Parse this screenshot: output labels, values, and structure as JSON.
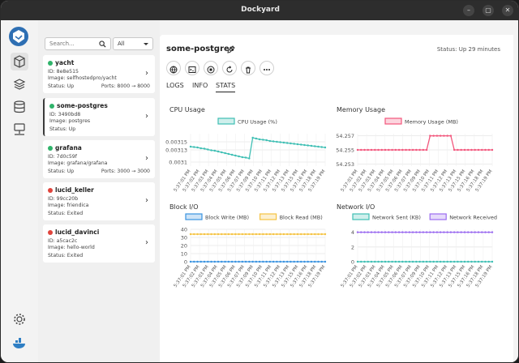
{
  "app": {
    "title": "Dockyard"
  },
  "titlebar": {
    "menu_icon": "ellipsis-icon",
    "minimize": "–",
    "maximize": "▢",
    "close": "✕"
  },
  "rail": {
    "items": [
      "containers-icon",
      "images-icon",
      "volumes-icon",
      "networks-icon"
    ],
    "settings": "gear-icon",
    "docker": "docker-whale-icon"
  },
  "search": {
    "placeholder": "Search..."
  },
  "filter": {
    "selected": "All"
  },
  "containers": [
    {
      "name": "yacht",
      "id": "ID: 8e8e515",
      "image": "Image: selfhostedpro/yacht",
      "status": "Status: Up",
      "ports": "Ports: 8000 → 8000",
      "state": "running"
    },
    {
      "name": "some-postgres",
      "id": "ID: 3490bd8",
      "image": "Image: postgres",
      "status": "Status: Up",
      "ports": "",
      "state": "running"
    },
    {
      "name": "grafana",
      "id": "ID: 7d0c59f",
      "image": "Image: grafana/grafana",
      "status": "Status: Up",
      "ports": "Ports: 3000 → 3000",
      "state": "running"
    },
    {
      "name": "lucid_keller",
      "id": "ID: 99cc20b",
      "image": "Image: friendica",
      "status": "Status: Exited",
      "ports": "",
      "state": "exited"
    },
    {
      "name": "lucid_davinci",
      "id": "ID: a5cac2c",
      "image": "Image: hello-world",
      "status": "Status: Exited",
      "ports": "",
      "state": "exited"
    }
  ],
  "detail": {
    "name": "some-postgres",
    "status": "Status: Up 29 minutes",
    "actions": [
      "globe-icon",
      "terminal-icon",
      "stop-icon",
      "restart-icon",
      "trash-icon",
      "more-icon"
    ],
    "tabs": [
      "LOGS",
      "INFO",
      "STATS"
    ],
    "active_tab": "STATS"
  },
  "colors": {
    "running": "#2fb36a",
    "exited": "#e0443c",
    "teal": "#3fbfb4",
    "pink": "#f2567c",
    "blue": "#3a93e0",
    "yellow": "#f5c342",
    "purple": "#9b6cf0"
  },
  "time_labels": [
    "5:37:01 PM",
    "5:37:02 PM",
    "5:37:03 PM",
    "5:37:04 PM",
    "5:37:05 PM",
    "5:37:06 PM",
    "5:37:07 PM",
    "5:37:09 PM",
    "5:37:10 PM",
    "5:37:11 PM",
    "5:37:12 PM",
    "5:37:13 PM",
    "5:37:15 PM",
    "5:37:16 PM",
    "5:37:18 PM",
    "5:37:19 PM"
  ],
  "chart_data": [
    {
      "type": "line",
      "title": "CPU Usage",
      "series": [
        {
          "name": "CPU Usage (%)",
          "color": "#3fbfb4",
          "x": [
            0,
            1,
            2,
            3,
            4,
            5,
            6,
            7,
            8,
            9,
            10,
            11,
            12,
            13,
            14,
            15,
            16,
            17,
            18,
            19,
            20,
            21,
            22,
            23,
            24,
            25,
            26,
            27,
            28,
            29,
            30,
            31,
            32,
            33,
            34,
            35,
            36,
            37,
            38,
            39
          ],
          "values": [
            0.003138,
            0.003137,
            0.003136,
            0.003134,
            0.003133,
            0.003131,
            0.003129,
            0.003128,
            0.003126,
            0.003124,
            0.003122,
            0.00312,
            0.003118,
            0.003116,
            0.003114,
            0.003112,
            0.003111,
            0.003109,
            0.00316,
            0.003158,
            0.003156,
            0.003155,
            0.003154,
            0.003152,
            0.003151,
            0.00315,
            0.003149,
            0.003148,
            0.003147,
            0.003146,
            0.003145,
            0.003144,
            0.003143,
            0.003142,
            0.003141,
            0.00314,
            0.003139,
            0.003138,
            0.003137,
            0.003136
          ]
        }
      ],
      "yticks": [
        "0.00315",
        "0.00313",
        "0.0031"
      ],
      "ylim": [
        0.00309,
        0.00317
      ]
    },
    {
      "type": "line",
      "title": "Memory Usage",
      "series": [
        {
          "name": "Memory Usage (MB)",
          "color": "#f2567c",
          "values": [
            54.255,
            54.255,
            54.255,
            54.255,
            54.255,
            54.255,
            54.255,
            54.255,
            54.255,
            54.255,
            54.255,
            54.255,
            54.255,
            54.255,
            54.255,
            54.255,
            54.255,
            54.255,
            54.255,
            54.255,
            54.255,
            54.257,
            54.257,
            54.257,
            54.257,
            54.257,
            54.257,
            54.257,
            54.255,
            54.255,
            54.255,
            54.255,
            54.255,
            54.255,
            54.255,
            54.255,
            54.255,
            54.255,
            54.255,
            54.255
          ]
        }
      ],
      "yticks": [
        "54.257",
        "54.255",
        "54.253"
      ],
      "ylim": [
        54.2527,
        54.2573
      ]
    },
    {
      "type": "line",
      "title": "Block I/O",
      "series": [
        {
          "name": "Block Write (MB)",
          "color": "#3a93e0",
          "values": [
            0,
            0,
            0,
            0,
            0,
            0,
            0,
            0,
            0,
            0,
            0,
            0,
            0,
            0,
            0,
            0,
            0,
            0,
            0,
            0,
            0,
            0,
            0,
            0,
            0,
            0,
            0,
            0,
            0,
            0,
            0,
            0,
            0,
            0,
            0,
            0,
            0,
            0,
            0,
            0
          ]
        },
        {
          "name": "Block Read (MB)",
          "color": "#f5c342",
          "values": [
            34,
            34,
            34,
            34,
            34,
            34,
            34,
            34,
            34,
            34,
            34,
            34,
            34,
            34,
            34,
            34,
            34,
            34,
            34,
            34,
            34,
            34,
            34,
            34,
            34,
            34,
            34,
            34,
            34,
            34,
            34,
            34,
            34,
            34,
            34,
            34,
            34,
            34,
            34,
            34
          ]
        }
      ],
      "yticks": [
        "40",
        "30",
        "20",
        "10",
        "0"
      ],
      "ylim": [
        0,
        40
      ]
    },
    {
      "type": "line",
      "title": "Network I/O",
      "series": [
        {
          "name": "Network Sent (KB)",
          "color": "#3fbfb4",
          "values": [
            0,
            0,
            0,
            0,
            0,
            0,
            0,
            0,
            0,
            0,
            0,
            0,
            0,
            0,
            0,
            0,
            0,
            0,
            0,
            0,
            0,
            0,
            0,
            0,
            0,
            0,
            0,
            0,
            0,
            0,
            0,
            0,
            0,
            0,
            0,
            0,
            0,
            0,
            0,
            0
          ]
        },
        {
          "name": "Network Received (KB)",
          "color": "#9b6cf0",
          "values": [
            4,
            4,
            4,
            4,
            4,
            4,
            4,
            4,
            4,
            4,
            4,
            4,
            4,
            4,
            4,
            4,
            4,
            4,
            4,
            4,
            4,
            4,
            4,
            4,
            4,
            4,
            4,
            4,
            4,
            4,
            4,
            4,
            4,
            4,
            4,
            4,
            4,
            4,
            4,
            4
          ]
        }
      ],
      "yticks": [
        "4",
        "2",
        "0"
      ],
      "ylim": [
        0,
        4.4
      ]
    }
  ]
}
